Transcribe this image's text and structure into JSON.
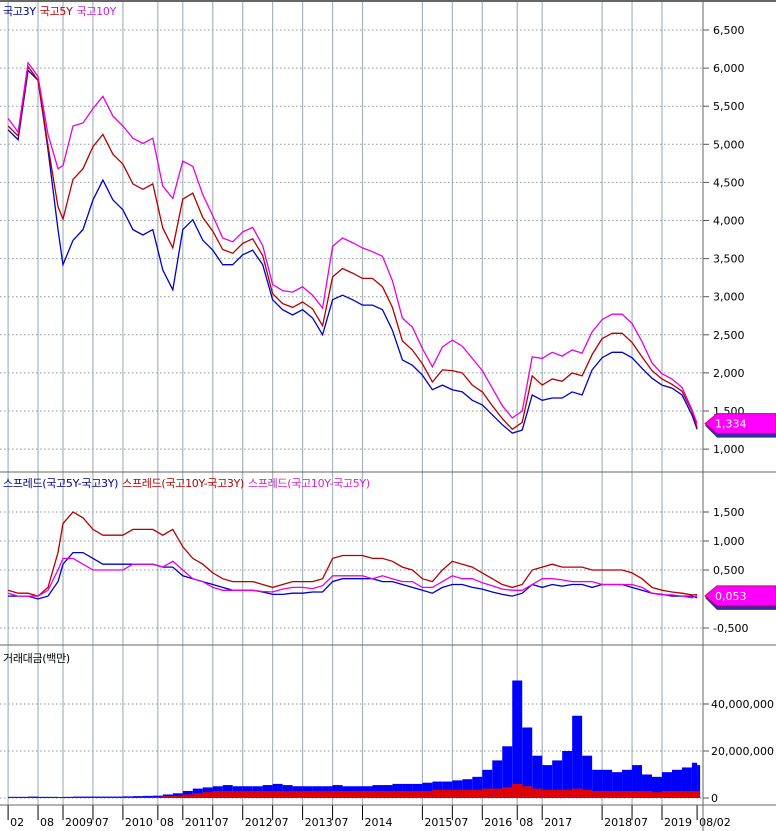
{
  "chart_data": [
    {
      "type": "line",
      "legend": [
        "국고3Y",
        "국고5Y",
        "국고10Y"
      ],
      "y_ticks": [
        "6,500",
        "6,000",
        "5,500",
        "5,000",
        "4,500",
        "4,000",
        "3,500",
        "3,000",
        "2,500",
        "2,000",
        "1,500",
        "1,000"
      ],
      "y_tick_values": [
        6.5,
        6.0,
        5.5,
        5.0,
        4.5,
        4.0,
        3.5,
        3.0,
        2.5,
        2.0,
        1.5,
        1.0
      ],
      "ylim": [
        0.7,
        6.9
      ],
      "last_value_label": "1,334",
      "grid": true,
      "x": [
        "2008-02",
        "2008-04",
        "2008-06",
        "2008-08",
        "2008-10",
        "2008-12",
        "2009-01",
        "2009-03",
        "2009-05",
        "2009-07",
        "2009-09",
        "2009-11",
        "2010-01",
        "2010-03",
        "2010-05",
        "2010-07",
        "2010-09",
        "2010-11",
        "2011-01",
        "2011-03",
        "2011-05",
        "2011-07",
        "2011-09",
        "2011-11",
        "2012-01",
        "2012-03",
        "2012-05",
        "2012-07",
        "2012-09",
        "2012-11",
        "2013-01",
        "2013-03",
        "2013-05",
        "2013-07",
        "2013-09",
        "2013-11",
        "2014-01",
        "2014-03",
        "2014-05",
        "2014-07",
        "2014-09",
        "2014-11",
        "2015-01",
        "2015-03",
        "2015-05",
        "2015-07",
        "2015-09",
        "2015-11",
        "2016-01",
        "2016-03",
        "2016-05",
        "2016-07",
        "2016-09",
        "2016-11",
        "2017-01",
        "2017-03",
        "2017-05",
        "2017-07",
        "2017-09",
        "2017-11",
        "2018-01",
        "2018-03",
        "2018-05",
        "2018-07",
        "2018-09",
        "2018-11",
        "2019-01",
        "2019-03",
        "2019-05",
        "2019-07",
        "2019-08-02"
      ],
      "series": [
        {
          "name": "국고3Y",
          "color": "#0000c8",
          "values": [
            5.19,
            5.06,
            5.97,
            5.84,
            4.93,
            3.88,
            3.42,
            3.74,
            3.88,
            4.27,
            4.53,
            4.27,
            4.14,
            3.88,
            3.81,
            3.88,
            3.35,
            3.09,
            3.88,
            4.01,
            3.74,
            3.61,
            3.42,
            3.42,
            3.55,
            3.61,
            3.42,
            2.96,
            2.83,
            2.76,
            2.83,
            2.72,
            2.5,
            2.96,
            3.02,
            2.96,
            2.89,
            2.89,
            2.83,
            2.56,
            2.17,
            2.1,
            1.97,
            1.78,
            1.84,
            1.78,
            1.75,
            1.64,
            1.58,
            1.45,
            1.32,
            1.21,
            1.25,
            1.71,
            1.64,
            1.67,
            1.67,
            1.75,
            1.71,
            2.04,
            2.2,
            2.27,
            2.27,
            2.2,
            2.06,
            1.93,
            1.84,
            1.8,
            1.71,
            1.45,
            1.26
          ]
        },
        {
          "name": "국고5Y",
          "color": "#b40000",
          "values": [
            5.24,
            5.11,
            6.02,
            5.84,
            4.98,
            4.18,
            4.02,
            4.54,
            4.68,
            4.97,
            5.13,
            4.87,
            4.74,
            4.48,
            4.41,
            4.48,
            3.9,
            3.64,
            4.28,
            4.36,
            4.04,
            3.86,
            3.62,
            3.57,
            3.7,
            3.76,
            3.54,
            3.04,
            2.91,
            2.86,
            2.93,
            2.84,
            2.62,
            3.26,
            3.37,
            3.31,
            3.24,
            3.24,
            3.13,
            2.86,
            2.42,
            2.3,
            2.12,
            1.88,
            2.04,
            2.03,
            2.0,
            1.84,
            1.75,
            1.57,
            1.4,
            1.26,
            1.35,
            1.96,
            1.84,
            1.92,
            1.89,
            2.0,
            1.96,
            2.24,
            2.45,
            2.52,
            2.52,
            2.4,
            2.21,
            2.03,
            1.92,
            1.85,
            1.76,
            1.5,
            1.281
          ]
        },
        {
          "name": "국고10Y",
          "color": "#e600e6",
          "values": [
            5.34,
            5.16,
            6.07,
            5.89,
            5.13,
            4.68,
            4.72,
            5.24,
            5.28,
            5.47,
            5.63,
            5.37,
            5.24,
            5.08,
            5.01,
            5.08,
            4.45,
            4.29,
            4.78,
            4.71,
            4.34,
            4.06,
            3.77,
            3.72,
            3.85,
            3.91,
            3.67,
            3.16,
            3.08,
            3.06,
            3.13,
            3.02,
            2.85,
            3.66,
            3.77,
            3.71,
            3.64,
            3.59,
            3.53,
            3.21,
            2.72,
            2.6,
            2.32,
            2.08,
            2.34,
            2.43,
            2.35,
            2.19,
            2.03,
            1.8,
            1.57,
            1.41,
            1.5,
            2.21,
            2.19,
            2.27,
            2.22,
            2.3,
            2.26,
            2.54,
            2.7,
            2.77,
            2.77,
            2.65,
            2.41,
            2.13,
            1.99,
            1.92,
            1.81,
            1.52,
            1.334
          ]
        }
      ]
    },
    {
      "type": "line",
      "legend": [
        "스프레드(국고5Y-국고3Y)",
        "스프레드(국고10Y-국고3Y)",
        "스프레드(국고10Y-국고5Y)"
      ],
      "y_ticks": [
        "1,500",
        "1,000",
        "0,500",
        "-0,500"
      ],
      "y_tick_values": [
        1.5,
        1.0,
        0.5,
        -0.5
      ],
      "ylim": [
        -0.78,
        2.0
      ],
      "last_value_label": "0,053",
      "grid": true,
      "series": [
        {
          "name": "스프레드(국고5Y-국고3Y)",
          "color": "#0000c8",
          "values": [
            0.05,
            0.05,
            0.05,
            0.0,
            0.05,
            0.3,
            0.6,
            0.8,
            0.8,
            0.7,
            0.6,
            0.6,
            0.6,
            0.6,
            0.6,
            0.6,
            0.55,
            0.55,
            0.4,
            0.35,
            0.3,
            0.25,
            0.2,
            0.15,
            0.15,
            0.15,
            0.12,
            0.08,
            0.08,
            0.1,
            0.1,
            0.12,
            0.12,
            0.3,
            0.35,
            0.35,
            0.35,
            0.35,
            0.3,
            0.3,
            0.25,
            0.2,
            0.15,
            0.1,
            0.2,
            0.25,
            0.25,
            0.2,
            0.17,
            0.12,
            0.08,
            0.05,
            0.1,
            0.25,
            0.2,
            0.25,
            0.22,
            0.25,
            0.25,
            0.2,
            0.25,
            0.25,
            0.25,
            0.2,
            0.15,
            0.1,
            0.08,
            0.05,
            0.05,
            0.05,
            0.021
          ]
        },
        {
          "name": "스프레드(국고10Y-국고3Y)",
          "color": "#b40000",
          "values": [
            0.15,
            0.1,
            0.1,
            0.05,
            0.2,
            0.8,
            1.3,
            1.5,
            1.4,
            1.2,
            1.1,
            1.1,
            1.1,
            1.2,
            1.2,
            1.2,
            1.1,
            1.2,
            0.9,
            0.7,
            0.6,
            0.45,
            0.35,
            0.3,
            0.3,
            0.3,
            0.25,
            0.2,
            0.25,
            0.3,
            0.3,
            0.3,
            0.35,
            0.7,
            0.75,
            0.75,
            0.75,
            0.7,
            0.7,
            0.65,
            0.55,
            0.5,
            0.35,
            0.3,
            0.5,
            0.65,
            0.6,
            0.55,
            0.45,
            0.35,
            0.25,
            0.2,
            0.25,
            0.5,
            0.55,
            0.6,
            0.55,
            0.55,
            0.55,
            0.5,
            0.5,
            0.5,
            0.5,
            0.45,
            0.35,
            0.2,
            0.15,
            0.12,
            0.1,
            0.07,
            0.074
          ]
        },
        {
          "name": "스프레드(국고10Y-국고5Y)",
          "color": "#e600e6",
          "values": [
            0.1,
            0.05,
            0.05,
            0.05,
            0.15,
            0.5,
            0.7,
            0.7,
            0.6,
            0.5,
            0.5,
            0.5,
            0.5,
            0.6,
            0.6,
            0.6,
            0.55,
            0.65,
            0.5,
            0.35,
            0.3,
            0.2,
            0.15,
            0.15,
            0.15,
            0.15,
            0.13,
            0.12,
            0.17,
            0.2,
            0.2,
            0.18,
            0.23,
            0.4,
            0.4,
            0.4,
            0.4,
            0.35,
            0.4,
            0.35,
            0.3,
            0.3,
            0.2,
            0.2,
            0.3,
            0.4,
            0.35,
            0.35,
            0.28,
            0.23,
            0.17,
            0.15,
            0.15,
            0.25,
            0.35,
            0.35,
            0.33,
            0.3,
            0.3,
            0.3,
            0.25,
            0.25,
            0.25,
            0.25,
            0.2,
            0.1,
            0.07,
            0.07,
            0.05,
            0.02,
            0.053
          ]
        }
      ]
    },
    {
      "type": "bar",
      "legend": [
        "거래대금(백만)"
      ],
      "y_ticks": [
        "40,000,000",
        "20,000,000",
        "0"
      ],
      "y_tick_values": [
        40000000,
        20000000,
        0
      ],
      "ylim": [
        0,
        57000000
      ],
      "grid": true,
      "series": [
        {
          "color": "#0000ff",
          "values": [
            500000,
            500000,
            600000,
            500000,
            500000,
            400000,
            500000,
            600000,
            600000,
            600000,
            600000,
            600000,
            700000,
            800000,
            900000,
            1000000,
            1500000,
            2000000,
            3000000,
            4000000,
            4500000,
            5000000,
            5500000,
            5000000,
            5000000,
            5000000,
            5500000,
            6000000,
            5500000,
            5000000,
            5000000,
            5000000,
            5000000,
            5500000,
            5000000,
            5000000,
            5000000,
            5500000,
            5500000,
            6000000,
            6000000,
            6000000,
            6500000,
            7000000,
            7000000,
            7500000,
            8000000,
            9000000,
            12000000,
            16000000,
            22000000,
            50000000,
            30000000,
            18000000,
            14000000,
            16000000,
            20000000,
            35000000,
            18000000,
            12000000,
            12000000,
            11000000,
            12000000,
            14000000,
            10000000,
            9000000,
            11000000,
            12000000,
            13000000,
            15000000,
            14000000
          ]
        },
        {
          "color": "#e00000",
          "values": [
            200000,
            200000,
            200000,
            200000,
            200000,
            150000,
            200000,
            200000,
            200000,
            200000,
            200000,
            200000,
            300000,
            300000,
            400000,
            500000,
            800000,
            1000000,
            1500000,
            2000000,
            2500000,
            3000000,
            3000000,
            3000000,
            3000000,
            3000000,
            3000000,
            3000000,
            3000000,
            3000000,
            3000000,
            3000000,
            3000000,
            3000000,
            3000000,
            3000000,
            3000000,
            3000000,
            3000000,
            3000000,
            3000000,
            3000000,
            3000000,
            3500000,
            3500000,
            3500000,
            3500000,
            3500000,
            4000000,
            4000000,
            4500000,
            6000000,
            5000000,
            4000000,
            3500000,
            3500000,
            3500000,
            4000000,
            3500000,
            3000000,
            3000000,
            3000000,
            3000000,
            3000000,
            3000000,
            2500000,
            3000000,
            3000000,
            3000000,
            3000000,
            3000000
          ]
        }
      ]
    }
  ],
  "x_axis": {
    "ticks": [
      {
        "label": "02",
        "date": "2008-02"
      },
      {
        "label": "08",
        "date": "2008-08"
      },
      {
        "label": "2009",
        "date": "2009-01"
      },
      {
        "label": "07",
        "date": "2009-07"
      },
      {
        "label": "2010",
        "date": "2010-01"
      },
      {
        "label": "08",
        "date": "2010-08"
      },
      {
        "label": "2011",
        "date": "2011-01"
      },
      {
        "label": "07",
        "date": "2011-07"
      },
      {
        "label": "2012",
        "date": "2012-01"
      },
      {
        "label": "07",
        "date": "2012-07"
      },
      {
        "label": "2013",
        "date": "2013-01"
      },
      {
        "label": "07",
        "date": "2013-07"
      },
      {
        "label": "2014",
        "date": "2014-01"
      },
      {
        "label": "2015",
        "date": "2015-01"
      },
      {
        "label": "07",
        "date": "2015-07"
      },
      {
        "label": "2016",
        "date": "2016-01"
      },
      {
        "label": "08",
        "date": "2016-08"
      },
      {
        "label": "2017",
        "date": "2017-01"
      },
      {
        "label": "2018",
        "date": "2018-01"
      },
      {
        "label": "07",
        "date": "2018-07"
      },
      {
        "label": "2019",
        "date": "2019-01"
      },
      {
        "label": "08/02",
        "date": "2019-08-02"
      }
    ]
  }
}
